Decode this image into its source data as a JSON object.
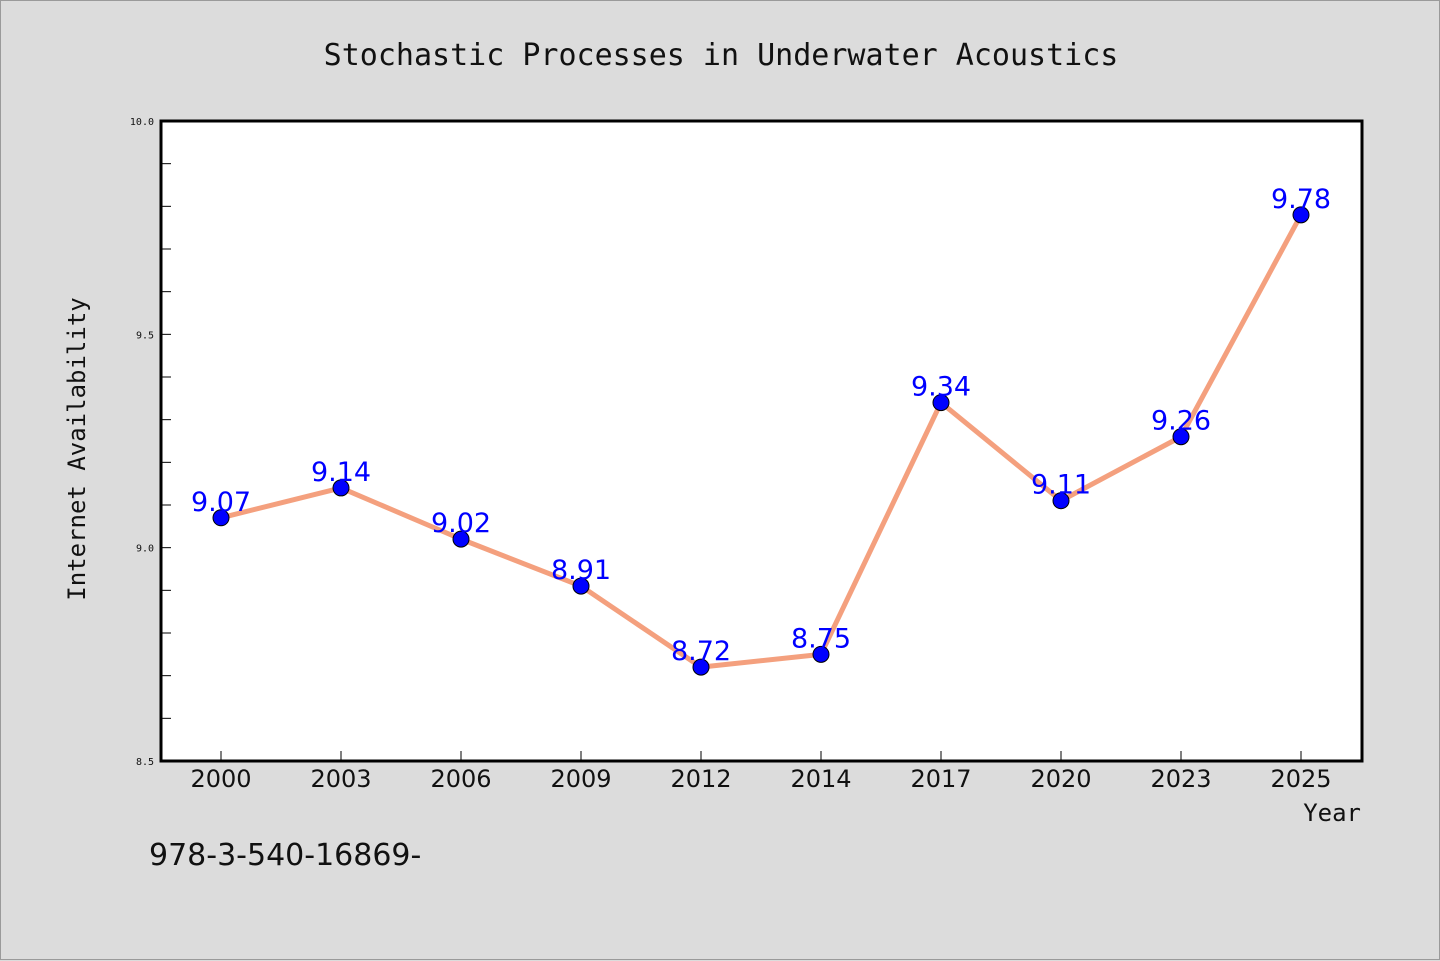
{
  "chart_data": {
    "type": "line",
    "title": "Stochastic Processes in Underwater Acoustics",
    "xlabel": "Year",
    "ylabel": "Internet Availability",
    "categories": [
      "2000",
      "2003",
      "2006",
      "2009",
      "2012",
      "2014",
      "2017",
      "2020",
      "2023",
      "2025"
    ],
    "series": [
      {
        "values": [
          9.07,
          9.14,
          9.02,
          8.91,
          8.72,
          8.75,
          9.34,
          9.11,
          9.26,
          9.78
        ],
        "data_labels": [
          "9.07",
          "9.14",
          "9.02",
          "8.91",
          "8.72",
          "8.75",
          "9.34",
          "9.11",
          "9.26",
          "9.78"
        ]
      }
    ],
    "ylim": [
      8.5,
      10.0
    ],
    "yticks": [
      "8.5",
      "9.0",
      "9.5",
      "10.0"
    ],
    "grid": false,
    "colors": {
      "line": "#f4a07e",
      "marker": "#0000ff",
      "data_label": "#0000ff",
      "background": "#dcdcdc",
      "plot_background": "#ffffff"
    }
  },
  "footnote": "978-3-540-16869-"
}
